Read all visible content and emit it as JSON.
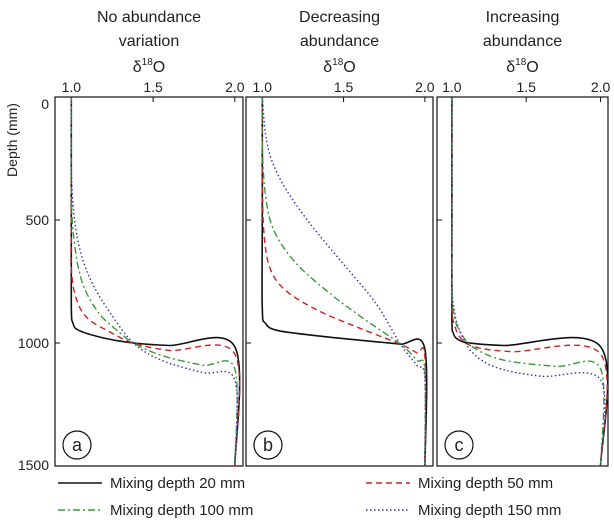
{
  "figure": {
    "ylabel": "Depth (mm)",
    "y_ticks": [
      "0",
      "500",
      "1000",
      "1500"
    ],
    "x_ticks": [
      "1.0",
      "1.5",
      "2.0"
    ],
    "xlabel_base": "δ",
    "xlabel_sup": "18",
    "xlabel_tail": "O"
  },
  "legend": [
    {
      "label": "Mixing depth 20 mm",
      "color": "#111111",
      "dash": "solid"
    },
    {
      "label": "Mixing depth 50 mm",
      "color": "#cc2222",
      "dash": "dashed"
    },
    {
      "label": "Mixing depth 100 mm",
      "color": "#3a9a3a",
      "dash": "dashdot"
    },
    {
      "label": "Mixing depth 150 mm",
      "color": "#3333aa",
      "dash": "dotted"
    }
  ],
  "chart_data": [
    {
      "type": "line",
      "panel": "a",
      "title_lines": [
        "No abundance",
        "variation"
      ],
      "xlim": [
        0.9,
        2.05
      ],
      "ylim": [
        1500,
        0
      ],
      "series": [
        {
          "name": "Mixing depth 20 mm",
          "points": [
            [
              1.0,
              0
            ],
            [
              1.0,
              500
            ],
            [
              1.0,
              850
            ],
            [
              1.01,
              920
            ],
            [
              1.05,
              950
            ],
            [
              1.2,
              980
            ],
            [
              1.38,
              1000
            ],
            [
              1.6,
              1010
            ],
            [
              2.0,
              1015
            ],
            [
              2.0,
              1500
            ]
          ]
        },
        {
          "name": "Mixing depth 50 mm",
          "points": [
            [
              1.0,
              0
            ],
            [
              1.0,
              500
            ],
            [
              1.0,
              700
            ],
            [
              1.03,
              820
            ],
            [
              1.1,
              900
            ],
            [
              1.25,
              960
            ],
            [
              1.38,
              1000
            ],
            [
              1.6,
              1030
            ],
            [
              2.0,
              1045
            ],
            [
              2.0,
              1500
            ]
          ]
        },
        {
          "name": "Mixing depth 100 mm",
          "points": [
            [
              1.0,
              0
            ],
            [
              1.0,
              400
            ],
            [
              1.02,
              600
            ],
            [
              1.07,
              760
            ],
            [
              1.17,
              880
            ],
            [
              1.3,
              960
            ],
            [
              1.38,
              1000
            ],
            [
              1.55,
              1050
            ],
            [
              1.8,
              1090
            ],
            [
              2.0,
              1105
            ],
            [
              2.0,
              1500
            ]
          ]
        },
        {
          "name": "Mixing depth 150 mm",
          "points": [
            [
              1.0,
              0
            ],
            [
              1.0,
              300
            ],
            [
              1.02,
              500
            ],
            [
              1.06,
              640
            ],
            [
              1.13,
              760
            ],
            [
              1.24,
              880
            ],
            [
              1.38,
              1000
            ],
            [
              1.55,
              1070
            ],
            [
              1.8,
              1120
            ],
            [
              2.0,
              1150
            ],
            [
              2.0,
              1500
            ]
          ]
        }
      ]
    },
    {
      "type": "line",
      "panel": "b",
      "title_lines": [
        "Decreasing",
        "abundance"
      ],
      "xlim": [
        0.9,
        2.05
      ],
      "ylim": [
        1500,
        0
      ],
      "series": [
        {
          "name": "Mixing depth 20 mm",
          "points": [
            [
              1.0,
              0
            ],
            [
              1.0,
              500
            ],
            [
              1.0,
              860
            ],
            [
              1.02,
              920
            ],
            [
              1.1,
              950
            ],
            [
              1.4,
              975
            ],
            [
              1.7,
              995
            ],
            [
              1.85,
              1005
            ],
            [
              2.0,
              1025
            ],
            [
              2.0,
              1500
            ]
          ]
        },
        {
          "name": "Mixing depth 50 mm",
          "points": [
            [
              1.0,
              0
            ],
            [
              1.0,
              300
            ],
            [
              1.01,
              550
            ],
            [
              1.05,
              700
            ],
            [
              1.15,
              790
            ],
            [
              1.35,
              870
            ],
            [
              1.6,
              940
            ],
            [
              1.85,
              1005
            ],
            [
              1.95,
              1040
            ],
            [
              2.0,
              1055
            ],
            [
              2.0,
              1500
            ]
          ]
        },
        {
          "name": "Mixing depth 100 mm",
          "points": [
            [
              1.0,
              0
            ],
            [
              1.0,
              200
            ],
            [
              1.02,
              400
            ],
            [
              1.07,
              540
            ],
            [
              1.2,
              670
            ],
            [
              1.4,
              790
            ],
            [
              1.6,
              890
            ],
            [
              1.85,
              1005
            ],
            [
              1.95,
              1070
            ],
            [
              2.0,
              1110
            ],
            [
              2.0,
              1500
            ]
          ]
        },
        {
          "name": "Mixing depth 150 mm",
          "points": [
            [
              1.0,
              0
            ],
            [
              1.02,
              150
            ],
            [
              1.06,
              260
            ],
            [
              1.15,
              380
            ],
            [
              1.3,
              520
            ],
            [
              1.5,
              680
            ],
            [
              1.7,
              840
            ],
            [
              1.85,
              1005
            ],
            [
              1.95,
              1090
            ],
            [
              2.0,
              1140
            ],
            [
              2.0,
              1500
            ]
          ]
        }
      ]
    },
    {
      "type": "line",
      "panel": "c",
      "title_lines": [
        "Increasing",
        "abundance"
      ],
      "xlim": [
        0.9,
        2.05
      ],
      "ylim": [
        1500,
        0
      ],
      "series": [
        {
          "name": "Mixing depth 20 mm",
          "points": [
            [
              1.0,
              0
            ],
            [
              1.0,
              500
            ],
            [
              1.0,
              900
            ],
            [
              1.01,
              960
            ],
            [
              1.04,
              985
            ],
            [
              1.12,
              1000
            ],
            [
              1.35,
              1010
            ],
            [
              2.0,
              1015
            ],
            [
              2.0,
              1500
            ]
          ]
        },
        {
          "name": "Mixing depth 50 mm",
          "points": [
            [
              1.0,
              0
            ],
            [
              1.0,
              500
            ],
            [
              1.0,
              850
            ],
            [
              1.02,
              930
            ],
            [
              1.06,
              980
            ],
            [
              1.15,
              1015
            ],
            [
              1.4,
              1035
            ],
            [
              2.0,
              1045
            ],
            [
              2.0,
              1500
            ]
          ]
        },
        {
          "name": "Mixing depth 100 mm",
          "points": [
            [
              1.0,
              0
            ],
            [
              1.0,
              500
            ],
            [
              1.0,
              800
            ],
            [
              1.02,
              900
            ],
            [
              1.06,
              960
            ],
            [
              1.15,
              1020
            ],
            [
              1.35,
              1070
            ],
            [
              1.7,
              1095
            ],
            [
              2.0,
              1105
            ],
            [
              2.0,
              1500
            ]
          ]
        },
        {
          "name": "Mixing depth 150 mm",
          "points": [
            [
              1.0,
              0
            ],
            [
              1.0,
              500
            ],
            [
              1.0,
              760
            ],
            [
              1.02,
              880
            ],
            [
              1.06,
              960
            ],
            [
              1.14,
              1040
            ],
            [
              1.3,
              1100
            ],
            [
              1.6,
              1135
            ],
            [
              2.0,
              1150
            ],
            [
              2.0,
              1500
            ]
          ]
        }
      ]
    }
  ]
}
